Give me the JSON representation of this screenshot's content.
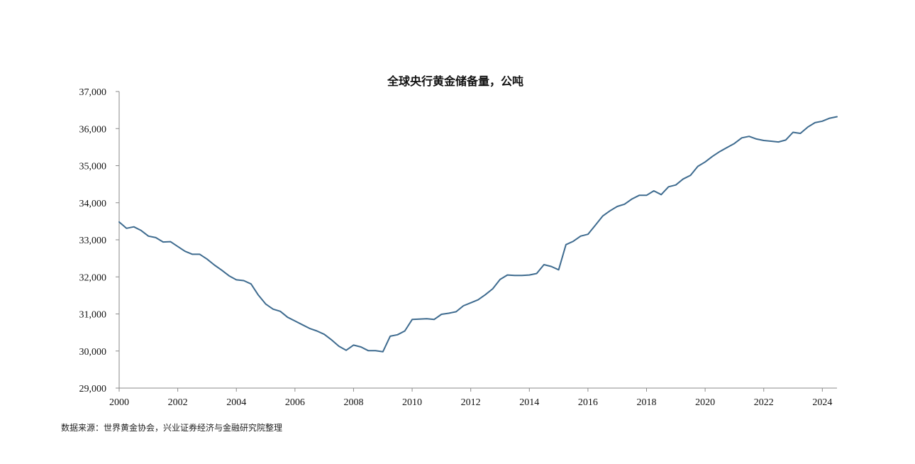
{
  "chart_data": {
    "type": "line",
    "title": "全球央行黄金储备量，公吨",
    "xlabel": "",
    "ylabel": "",
    "xlim": [
      2000,
      2024.5
    ],
    "ylim": [
      29000,
      37000
    ],
    "x_ticks": [
      2000,
      2002,
      2004,
      2006,
      2008,
      2010,
      2012,
      2014,
      2016,
      2018,
      2020,
      2022,
      2024
    ],
    "y_ticks": [
      29000,
      30000,
      31000,
      32000,
      33000,
      34000,
      35000,
      36000,
      37000
    ],
    "y_tick_labels": [
      "29,000",
      "30,000",
      "31,000",
      "32,000",
      "33,000",
      "34,000",
      "35,000",
      "36,000",
      "37,000"
    ],
    "grid": false,
    "legend": "none",
    "series": [
      {
        "color": "#3e6b8f",
        "x": [
          2000.0,
          2000.25,
          2000.5,
          2000.75,
          2001.0,
          2001.25,
          2001.5,
          2001.75,
          2002.0,
          2002.25,
          2002.5,
          2002.75,
          2003.0,
          2003.25,
          2003.5,
          2003.75,
          2004.0,
          2004.25,
          2004.5,
          2004.75,
          2005.0,
          2005.25,
          2005.5,
          2005.75,
          2006.0,
          2006.25,
          2006.5,
          2006.75,
          2007.0,
          2007.25,
          2007.5,
          2007.75,
          2008.0,
          2008.25,
          2008.5,
          2008.75,
          2009.0,
          2009.25,
          2009.5,
          2009.75,
          2010.0,
          2010.25,
          2010.5,
          2010.75,
          2011.0,
          2011.25,
          2011.5,
          2011.75,
          2012.0,
          2012.25,
          2012.5,
          2012.75,
          2013.0,
          2013.25,
          2013.5,
          2013.75,
          2014.0,
          2014.25,
          2014.5,
          2014.75,
          2015.0,
          2015.25,
          2015.5,
          2015.75,
          2016.0,
          2016.25,
          2016.5,
          2016.75,
          2017.0,
          2017.25,
          2017.5,
          2017.75,
          2018.0,
          2018.25,
          2018.5,
          2018.75,
          2019.0,
          2019.25,
          2019.5,
          2019.75,
          2020.0,
          2020.25,
          2020.5,
          2020.75,
          2021.0,
          2021.25,
          2021.5,
          2021.75,
          2022.0,
          2022.25,
          2022.5,
          2022.75,
          2023.0,
          2023.25,
          2023.5,
          2023.75,
          2024.0,
          2024.25,
          2024.5
        ],
        "values": [
          33480,
          33310,
          33350,
          33250,
          33100,
          33060,
          32940,
          32950,
          32820,
          32690,
          32610,
          32610,
          32480,
          32320,
          32180,
          32030,
          31920,
          31900,
          31810,
          31510,
          31270,
          31130,
          31070,
          30910,
          30810,
          30710,
          30610,
          30540,
          30450,
          30300,
          30130,
          30020,
          30160,
          30110,
          30010,
          30010,
          29980,
          30400,
          30440,
          30540,
          30850,
          30860,
          30870,
          30850,
          30990,
          31020,
          31060,
          31220,
          31300,
          31380,
          31520,
          31680,
          31930,
          32050,
          32040,
          32040,
          32050,
          32090,
          32330,
          32280,
          32190,
          32870,
          32960,
          33100,
          33150,
          33390,
          33640,
          33780,
          33900,
          33960,
          34100,
          34200,
          34200,
          34320,
          34220,
          34430,
          34480,
          34640,
          34740,
          34980,
          35100,
          35250,
          35380,
          35490,
          35600,
          35750,
          35790,
          35720,
          35680,
          35660,
          35640,
          35690,
          35900,
          35870,
          36040,
          36160,
          36200,
          36280,
          36320
        ]
      }
    ]
  },
  "source_note": "数据来源：世界黄金协会，兴业证券经济与金融研究院整理"
}
